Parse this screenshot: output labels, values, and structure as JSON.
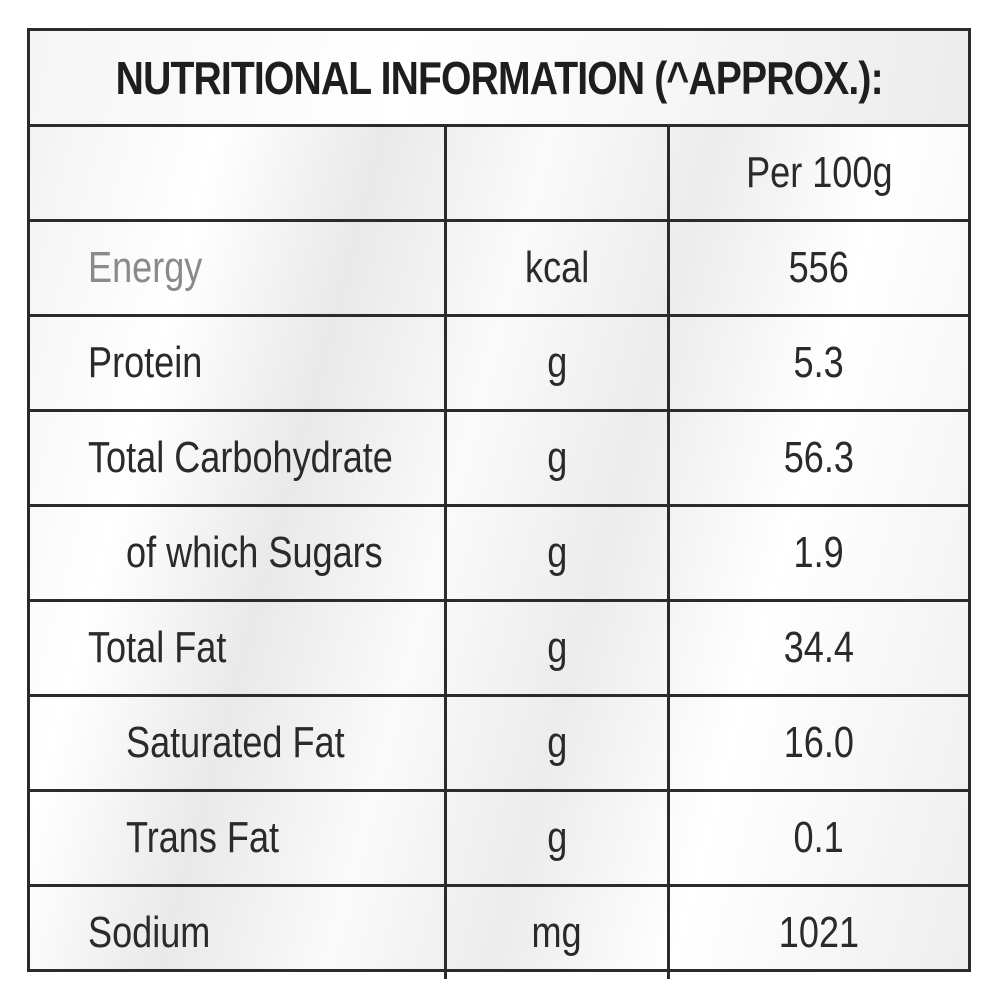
{
  "title": "NUTRITIONAL INFORMATION (^APPROX.):",
  "header": {
    "nutrient": "",
    "unit": "",
    "per": "Per 100g"
  },
  "rows": [
    {
      "nutrient": "Energy",
      "unit": "kcal",
      "value": "556"
    },
    {
      "nutrient": "Protein",
      "unit": "g",
      "value": "5.3"
    },
    {
      "nutrient": "Total Carbohydrate",
      "unit": "g",
      "value": "56.3"
    },
    {
      "nutrient": "of which Sugars",
      "unit": "g",
      "value": "1.9"
    },
    {
      "nutrient": "Total Fat",
      "unit": "g",
      "value": "34.4"
    },
    {
      "nutrient": "Saturated Fat",
      "unit": "g",
      "value": "16.0"
    },
    {
      "nutrient": "Trans Fat",
      "unit": "g",
      "value": "0.1"
    },
    {
      "nutrient": "Sodium",
      "unit": "mg",
      "value": "1021"
    }
  ]
}
